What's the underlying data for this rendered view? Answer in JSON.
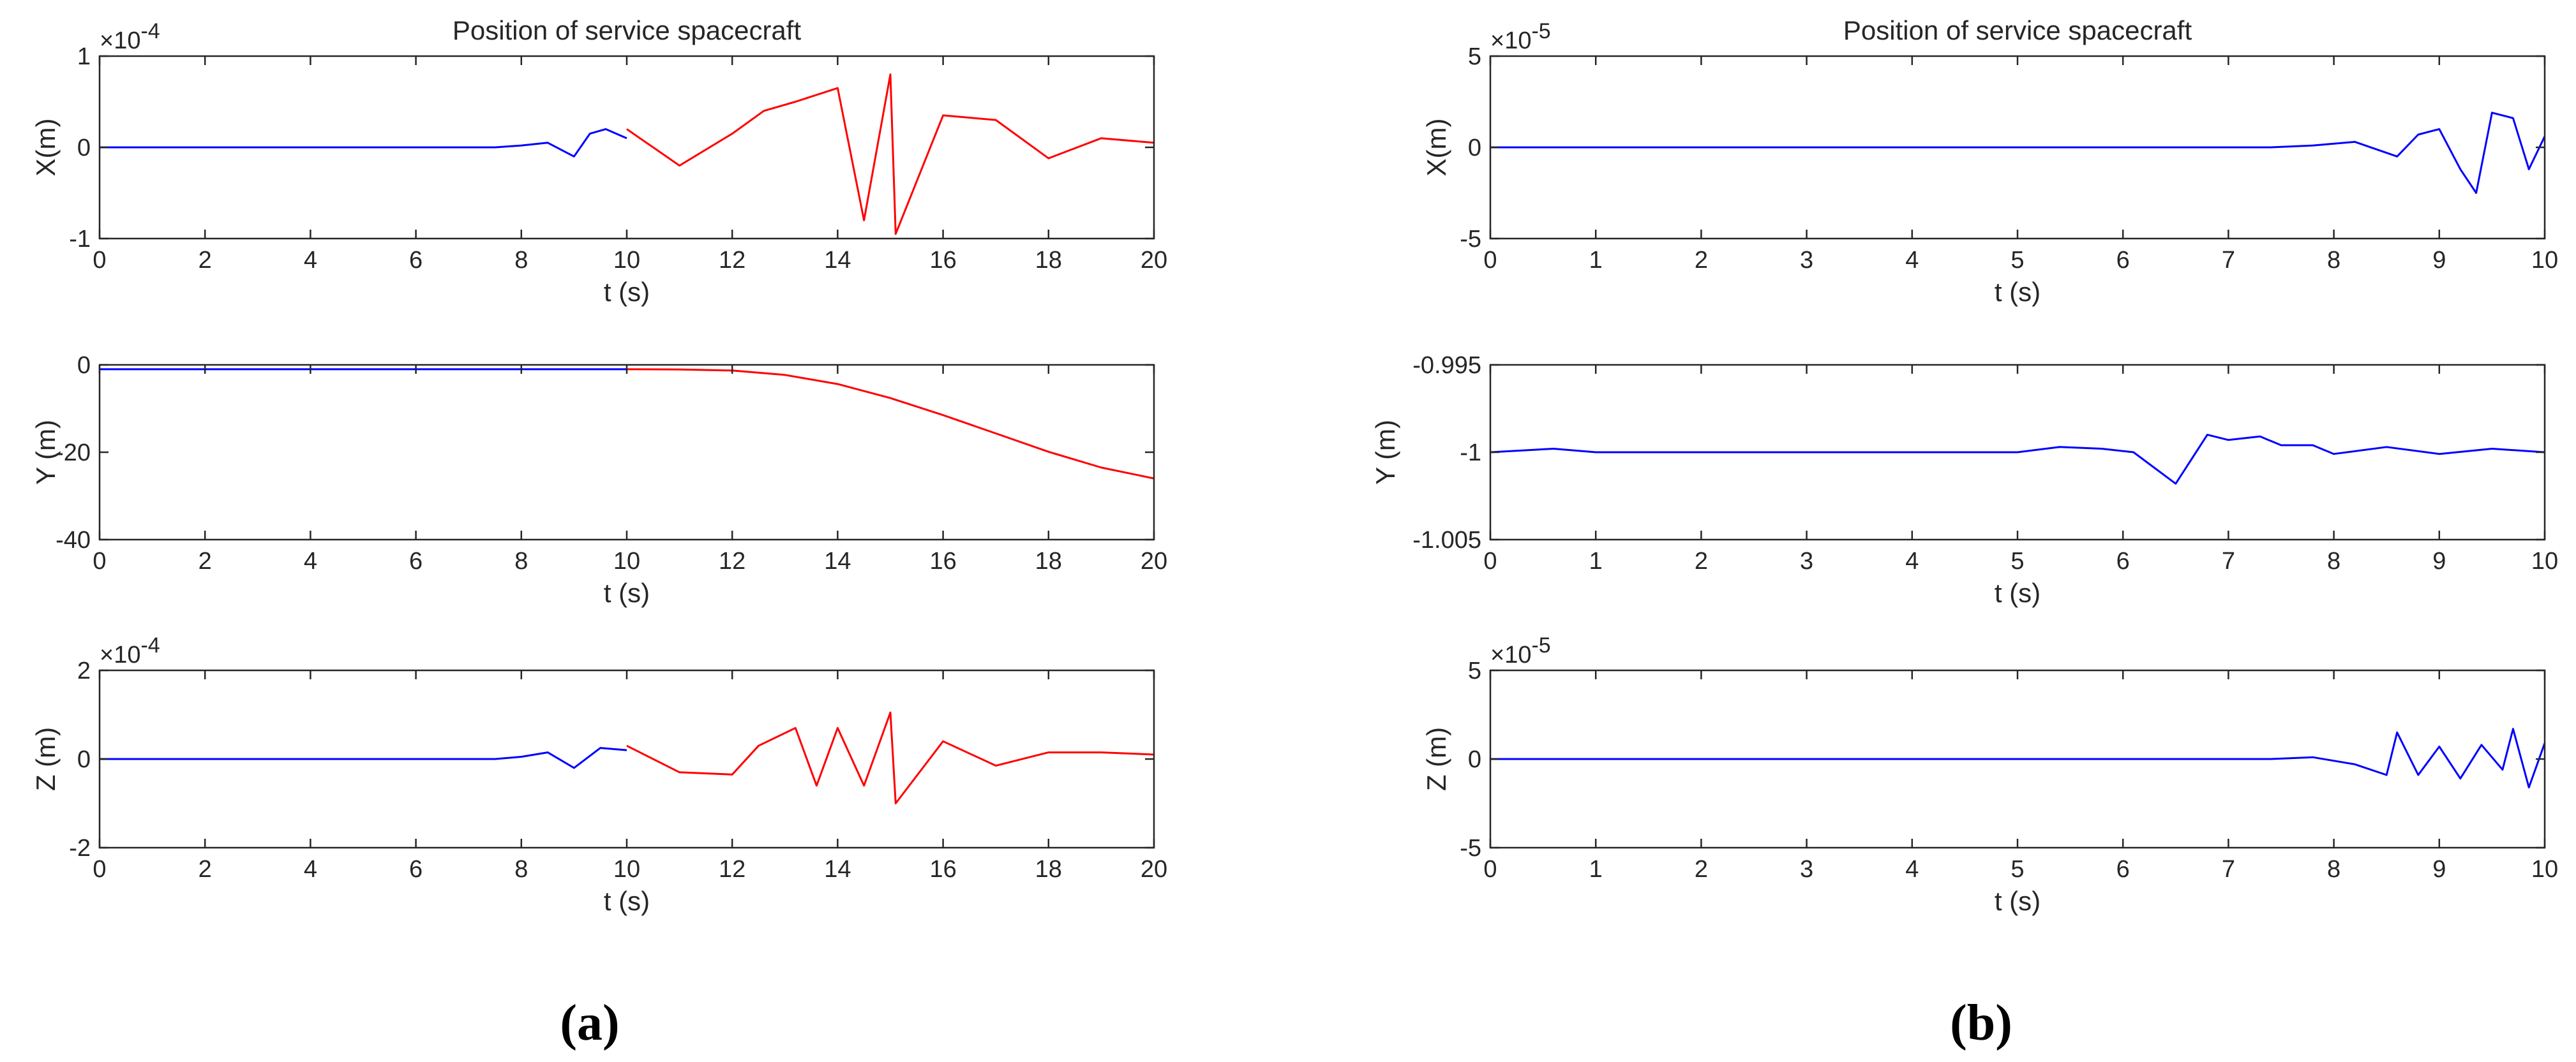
{
  "figure": {
    "panel_labels": [
      "(a)",
      "(b)"
    ]
  },
  "chart_data": [
    {
      "panel": "a",
      "subplot": "x",
      "type": "line",
      "title": "Position of service spacecraft",
      "xlabel": "t (s)",
      "ylabel": "X(m)",
      "y_exponent": "-4",
      "xlim": [
        0,
        20
      ],
      "ylim": [
        -1,
        1
      ],
      "xticks": [
        0,
        2,
        4,
        6,
        8,
        10,
        12,
        14,
        16,
        18,
        20
      ],
      "yticks": [
        -1,
        0,
        1
      ],
      "grid": false,
      "colors": {
        "phase1": "#0000ff",
        "phase2": "#ff0000"
      },
      "split_x": 10,
      "series": [
        {
          "color": "#0000ff",
          "x": [
            0,
            7.5,
            8,
            8.5,
            9,
            9.3,
            9.6,
            10
          ],
          "y": [
            0,
            0,
            0.02,
            0.05,
            -0.1,
            0.15,
            0.2,
            0.1
          ]
        },
        {
          "color": "#ff0000",
          "x": [
            10,
            11,
            12,
            12.6,
            13.2,
            14,
            14.5,
            15,
            15.1,
            16,
            17,
            18,
            19,
            20
          ],
          "y": [
            0.2,
            -0.2,
            0.15,
            0.4,
            0.5,
            0.65,
            -0.8,
            0.8,
            -0.95,
            0.35,
            0.3,
            -0.12,
            0.1,
            0.05
          ]
        }
      ]
    },
    {
      "panel": "a",
      "subplot": "y",
      "type": "line",
      "xlabel": "t (s)",
      "ylabel": "Y (m)",
      "xlim": [
        0,
        20
      ],
      "ylim": [
        -40,
        0
      ],
      "xticks": [
        0,
        2,
        4,
        6,
        8,
        10,
        12,
        14,
        16,
        18,
        20
      ],
      "yticks": [
        -40,
        -20,
        0
      ],
      "grid": false,
      "series": [
        {
          "color": "#0000ff",
          "x": [
            0,
            2,
            4,
            6,
            8,
            10
          ],
          "y": [
            -1,
            -1,
            -1,
            -1,
            -1,
            -1
          ]
        },
        {
          "color": "#ff0000",
          "x": [
            10,
            11,
            12,
            13,
            14,
            15,
            16,
            17,
            18,
            19,
            20
          ],
          "y": [
            -1,
            -1.05,
            -1.3,
            -2.3,
            -4.4,
            -7.6,
            -11.5,
            -15.7,
            -19.9,
            -23.5,
            -26
          ]
        }
      ]
    },
    {
      "panel": "a",
      "subplot": "z",
      "type": "line",
      "xlabel": "t (s)",
      "ylabel": "Z (m)",
      "y_exponent": "-4",
      "xlim": [
        0,
        20
      ],
      "ylim": [
        -2,
        2
      ],
      "xticks": [
        0,
        2,
        4,
        6,
        8,
        10,
        12,
        14,
        16,
        18,
        20
      ],
      "yticks": [
        -2,
        0,
        2
      ],
      "grid": false,
      "split_x": 10,
      "series": [
        {
          "color": "#0000ff",
          "x": [
            0,
            7.5,
            8,
            8.5,
            9,
            9.5,
            10
          ],
          "y": [
            0,
            0,
            0.05,
            0.15,
            -0.2,
            0.25,
            0.2
          ]
        },
        {
          "color": "#ff0000",
          "x": [
            10,
            11,
            12,
            12.5,
            13.2,
            13.6,
            14,
            14.5,
            15,
            15.1,
            16,
            17,
            18,
            19,
            20
          ],
          "y": [
            0.3,
            -0.3,
            -0.35,
            0.3,
            0.7,
            -0.6,
            0.7,
            -0.6,
            1.05,
            -1.0,
            0.4,
            -0.15,
            0.15,
            0.15,
            0.1
          ]
        }
      ]
    },
    {
      "panel": "b",
      "subplot": "x",
      "type": "line",
      "title": "Position of service spacecraft",
      "xlabel": "t (s)",
      "ylabel": "X(m)",
      "y_exponent": "-5",
      "xlim": [
        0,
        10
      ],
      "ylim": [
        -5,
        5
      ],
      "xticks": [
        0,
        1,
        2,
        3,
        4,
        5,
        6,
        7,
        8,
        9,
        10
      ],
      "yticks": [
        -5,
        0,
        5
      ],
      "grid": false,
      "series": [
        {
          "color": "#0000ff",
          "x": [
            0,
            7.4,
            7.8,
            8.2,
            8.6,
            8.8,
            9,
            9.2,
            9.35,
            9.5,
            9.7,
            9.85,
            10
          ],
          "y": [
            0,
            0,
            0.1,
            0.3,
            -0.5,
            0.7,
            1.0,
            -1.2,
            -2.5,
            1.9,
            1.6,
            -1.2,
            0.6
          ]
        }
      ]
    },
    {
      "panel": "b",
      "subplot": "y",
      "type": "line",
      "xlabel": "t (s)",
      "ylabel": "Y (m)",
      "xlim": [
        0,
        10
      ],
      "ylim": [
        -1.005,
        -0.995
      ],
      "xticks": [
        0,
        1,
        2,
        3,
        4,
        5,
        6,
        7,
        8,
        9,
        10
      ],
      "yticks": [
        -1.005,
        -1,
        -0.995
      ],
      "ytick_labels": [
        "-1.005",
        "-1",
        "-0.995"
      ],
      "grid": false,
      "series": [
        {
          "color": "#0000ff",
          "x": [
            0,
            0.6,
            1,
            2,
            3,
            4,
            5,
            5.4,
            5.8,
            6.1,
            6.5,
            6.8,
            7,
            7.3,
            7.5,
            7.8,
            8,
            8.5,
            9,
            9.5,
            10
          ],
          "y": [
            -1.0,
            -0.9998,
            -1.0,
            -1.0,
            -1.0,
            -1.0,
            -1.0,
            -0.9997,
            -0.9998,
            -1.0,
            -1.0018,
            -0.999,
            -0.9993,
            -0.9991,
            -0.9996,
            -0.9996,
            -1.0001,
            -0.9997,
            -1.0001,
            -0.9998,
            -1.0
          ]
        }
      ]
    },
    {
      "panel": "b",
      "subplot": "z",
      "type": "line",
      "xlabel": "t (s)",
      "ylabel": "Z (m)",
      "y_exponent": "-5",
      "xlim": [
        0,
        10
      ],
      "ylim": [
        -5,
        5
      ],
      "xticks": [
        0,
        1,
        2,
        3,
        4,
        5,
        6,
        7,
        8,
        9,
        10
      ],
      "yticks": [
        -5,
        0,
        5
      ],
      "grid": false,
      "series": [
        {
          "color": "#0000ff",
          "x": [
            0,
            7.4,
            7.8,
            8.2,
            8.5,
            8.6,
            8.8,
            9,
            9.2,
            9.4,
            9.6,
            9.7,
            9.85,
            10
          ],
          "y": [
            0,
            0,
            0.1,
            -0.3,
            -0.9,
            1.5,
            -0.9,
            0.7,
            -1.1,
            0.8,
            -0.6,
            1.7,
            -1.6,
            0.9
          ]
        }
      ]
    }
  ]
}
